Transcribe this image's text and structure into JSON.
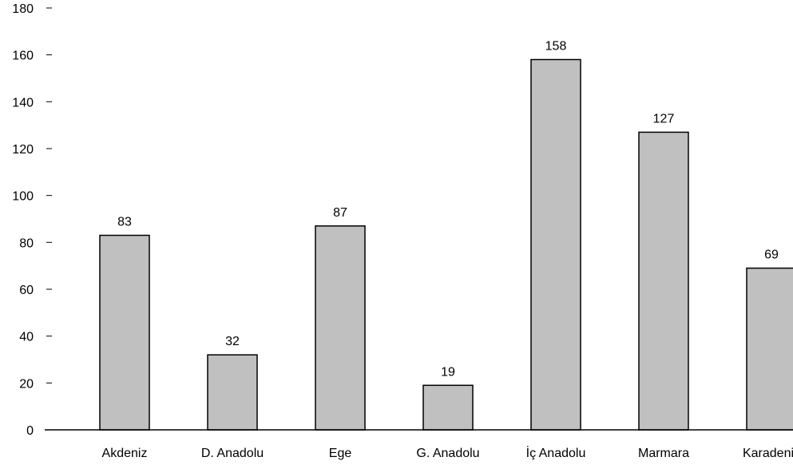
{
  "chart_data": {
    "type": "bar",
    "title": "",
    "xlabel": "",
    "ylabel": "",
    "categories": [
      "Akdeniz",
      "D. Anadolu",
      "Ege",
      "G. Anadolu",
      "İç Anadolu",
      "Marmara",
      "Karadeniz"
    ],
    "values": [
      83,
      32,
      87,
      19,
      158,
      127,
      69
    ],
    "data_labels": [
      "83",
      "32",
      "87",
      "19",
      "158",
      "127",
      "69"
    ],
    "ylim": [
      0,
      180
    ],
    "yticks": [
      0,
      20,
      40,
      60,
      80,
      100,
      120,
      140,
      160,
      180
    ],
    "ytick_labels": [
      "0",
      "20",
      "40",
      "60",
      "80",
      "100",
      "120",
      "140",
      "160",
      "180"
    ],
    "grid": false,
    "legend": "none",
    "colors": {
      "bar_fill": "#c0c0c0",
      "bar_stroke": "#000000",
      "axis": "#000000",
      "text": "#000000",
      "background": "#ffffff"
    }
  }
}
